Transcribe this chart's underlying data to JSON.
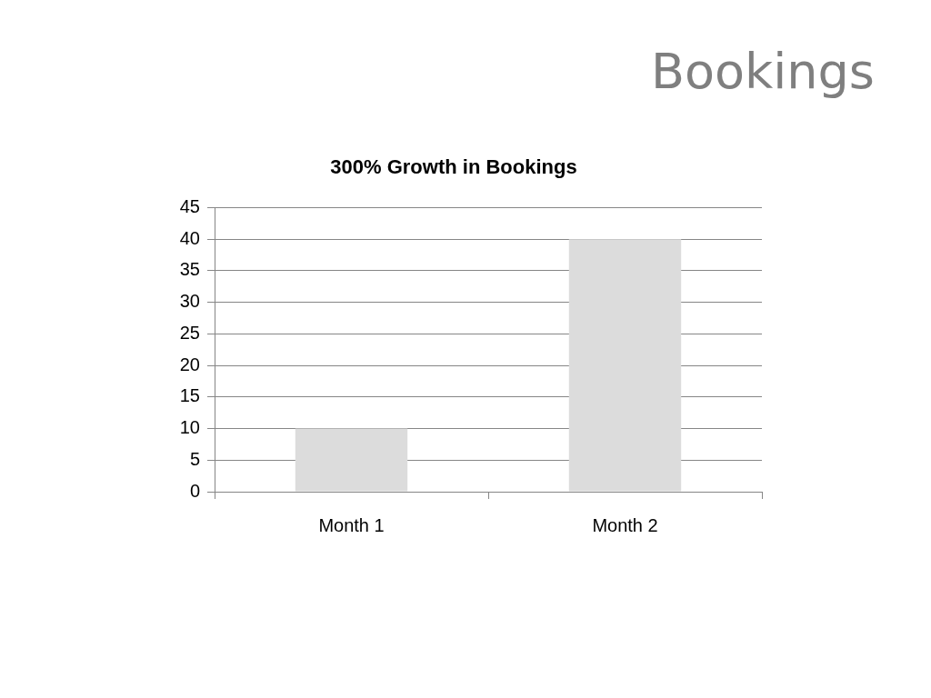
{
  "chart_data": {
    "type": "bar",
    "title": "Bookings",
    "subtitle": "300% Growth in Bookings",
    "categories": [
      "Month 1",
      "Month 2"
    ],
    "values": [
      10,
      40
    ],
    "color": "#dcdcdc",
    "ylim": [
      0,
      45
    ],
    "yticks": [
      0,
      5,
      10,
      15,
      20,
      25,
      30,
      35,
      40,
      45
    ],
    "grid": "y"
  }
}
